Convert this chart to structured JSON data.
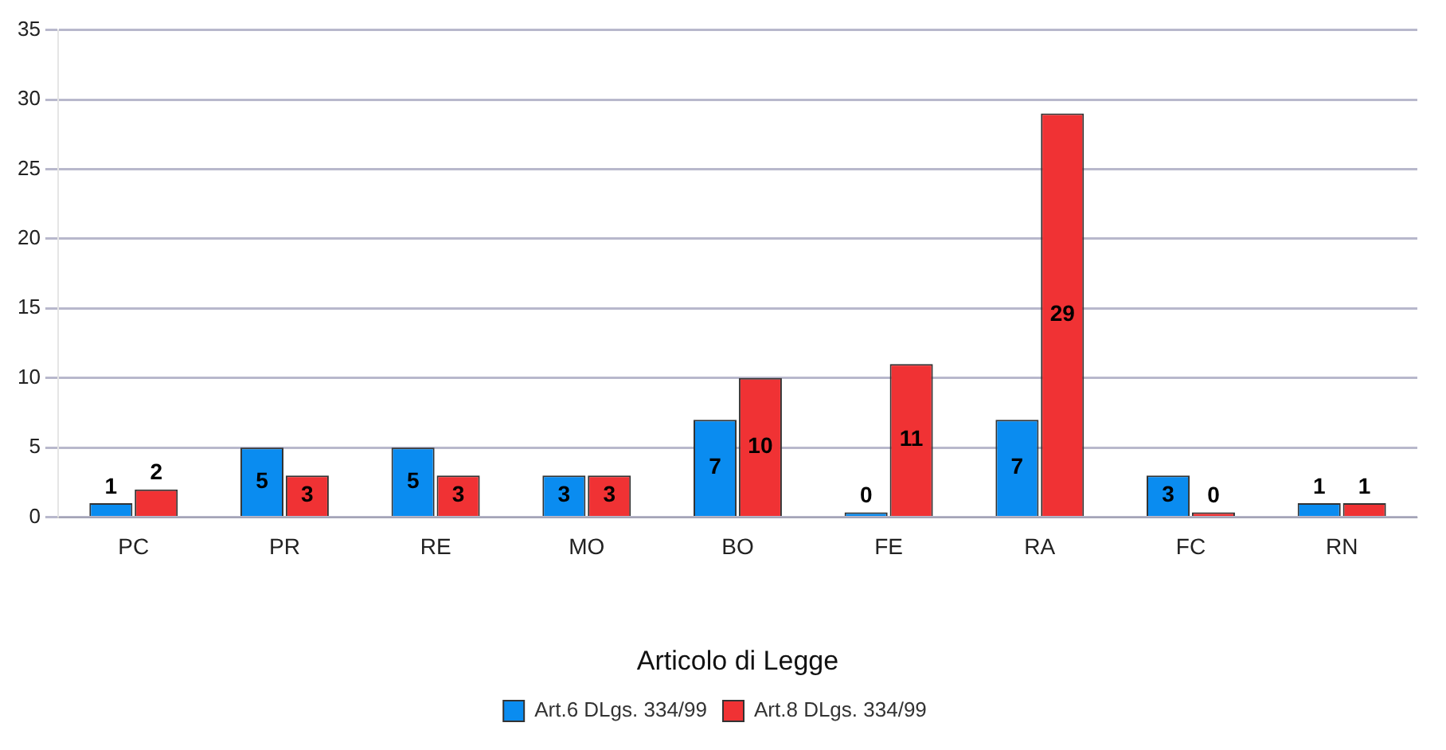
{
  "chart_data": {
    "type": "bar",
    "xlabel": "Articolo di Legge",
    "categories": [
      "PC",
      "PR",
      "RE",
      "MO",
      "BO",
      "FE",
      "RA",
      "FC",
      "RN"
    ],
    "series": [
      {
        "name": "Art.6 DLgs. 334/99",
        "color": "#0a8cf0",
        "values": [
          1,
          5,
          5,
          3,
          7,
          0,
          7,
          3,
          1
        ]
      },
      {
        "name": "Art.8 DLgs. 334/99",
        "color": "#f03234",
        "values": [
          2,
          3,
          3,
          3,
          10,
          11,
          29,
          0,
          1
        ]
      }
    ],
    "ylim": [
      0,
      35
    ],
    "yticks": [
      0,
      5,
      10,
      15,
      20,
      25,
      30,
      35
    ],
    "grid": "y",
    "legend": "bottom",
    "data_labels": true
  }
}
